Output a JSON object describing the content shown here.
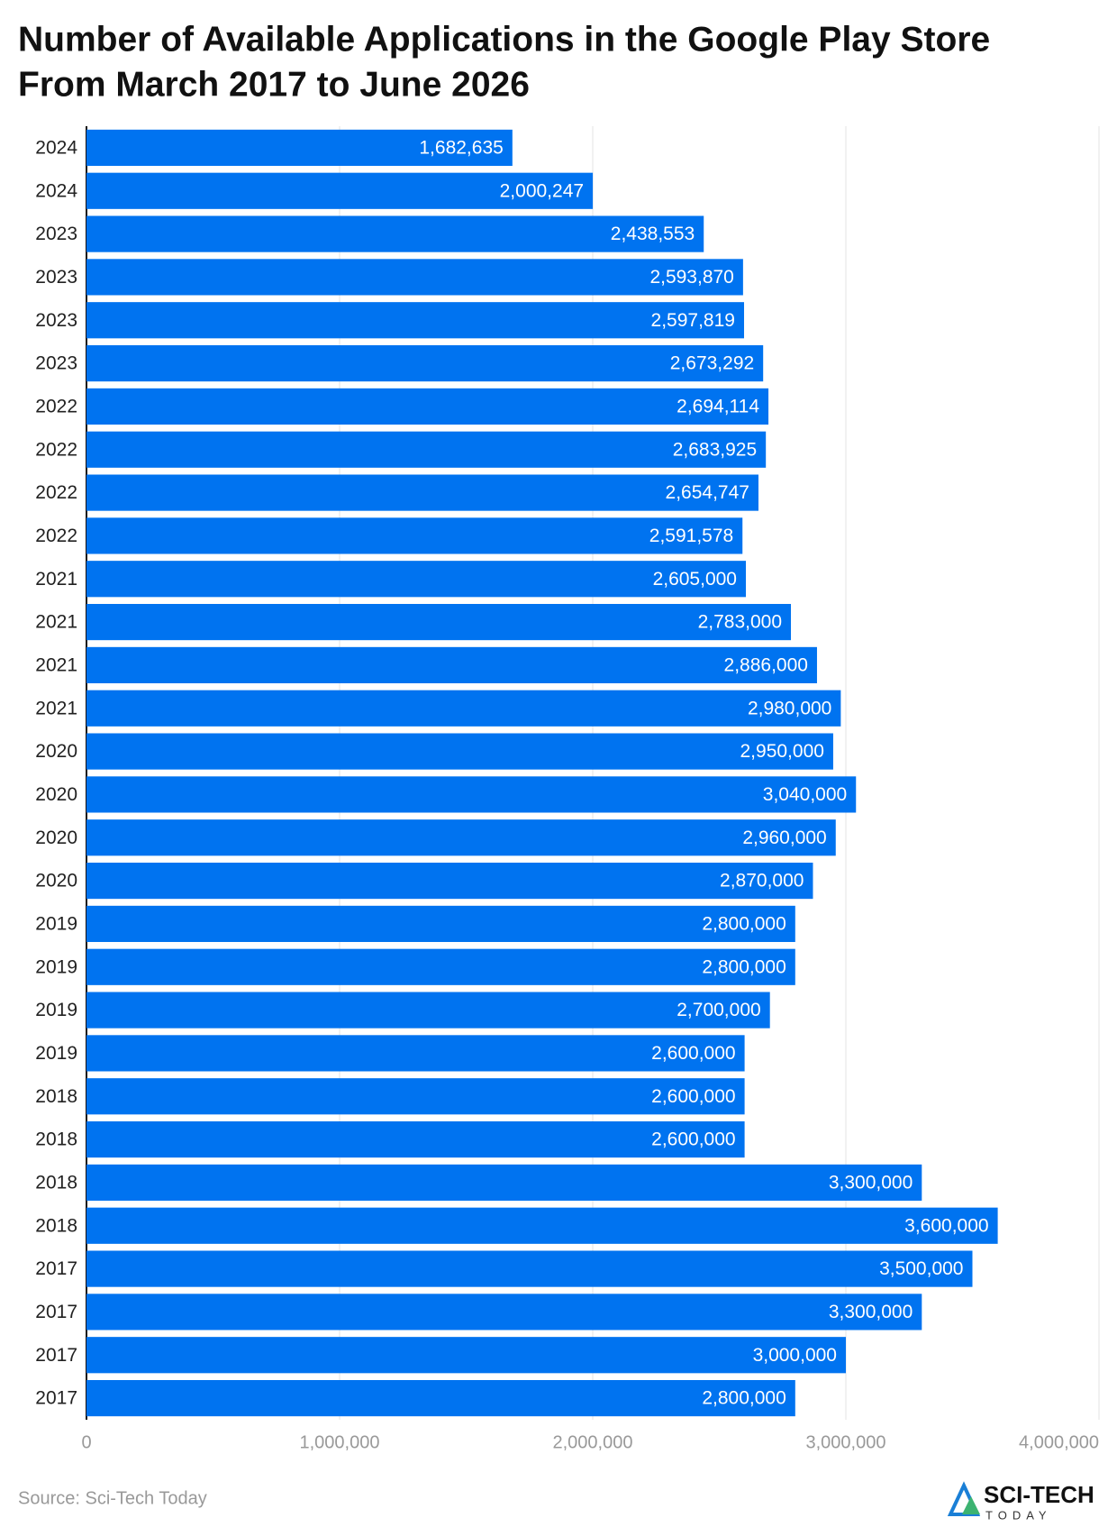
{
  "chart_data": {
    "type": "bar",
    "orientation": "horizontal",
    "title": [
      "Number of Available Applications in the Google Play Store",
      "From March 2017 to June 2026"
    ],
    "categories": [
      "2024",
      "2024",
      "2023",
      "2023",
      "2023",
      "2023",
      "2022",
      "2022",
      "2022",
      "2022",
      "2021",
      "2021",
      "2021",
      "2021",
      "2020",
      "2020",
      "2020",
      "2020",
      "2019",
      "2019",
      "2019",
      "2019",
      "2018",
      "2018",
      "2018",
      "2018",
      "2017",
      "2017",
      "2017",
      "2017"
    ],
    "values": [
      1682635,
      2000247,
      2438553,
      2593870,
      2597819,
      2673292,
      2694114,
      2683925,
      2654747,
      2591578,
      2605000,
      2783000,
      2886000,
      2980000,
      2950000,
      3040000,
      2960000,
      2870000,
      2800000,
      2800000,
      2700000,
      2600000,
      2600000,
      2600000,
      3300000,
      3600000,
      3500000,
      3300000,
      3000000,
      2800000
    ],
    "value_labels": [
      "1,682,635",
      "2,000,247",
      "2,438,553",
      "2,593,870",
      "2,597,819",
      "2,673,292",
      "2,694,114",
      "2,683,925",
      "2,654,747",
      "2,591,578",
      "2,605,000",
      "2,783,000",
      "2,886,000",
      "2,980,000",
      "2,950,000",
      "3,040,000",
      "2,960,000",
      "2,870,000",
      "2,800,000",
      "2,800,000",
      "2,700,000",
      "2,600,000",
      "2,600,000",
      "2,600,000",
      "3,300,000",
      "3,600,000",
      "3,500,000",
      "3,300,000",
      "3,000,000",
      "2,800,000"
    ],
    "color": "#0073f0",
    "xlim": [
      0,
      4000000
    ],
    "xticks": [
      0,
      {
        "value": 1000000,
        "label": "1,000,000"
      },
      {
        "value": 2000000,
        "label": "2,000,000"
      },
      {
        "value": 3000000,
        "label": "3,000,000"
      },
      {
        "value": 4000000,
        "label": "4,000,000"
      }
    ],
    "grid": true,
    "source": "Source: Sci-Tech Today",
    "logo": {
      "name": "SCI-TECH",
      "tagline": "TODAY"
    }
  }
}
